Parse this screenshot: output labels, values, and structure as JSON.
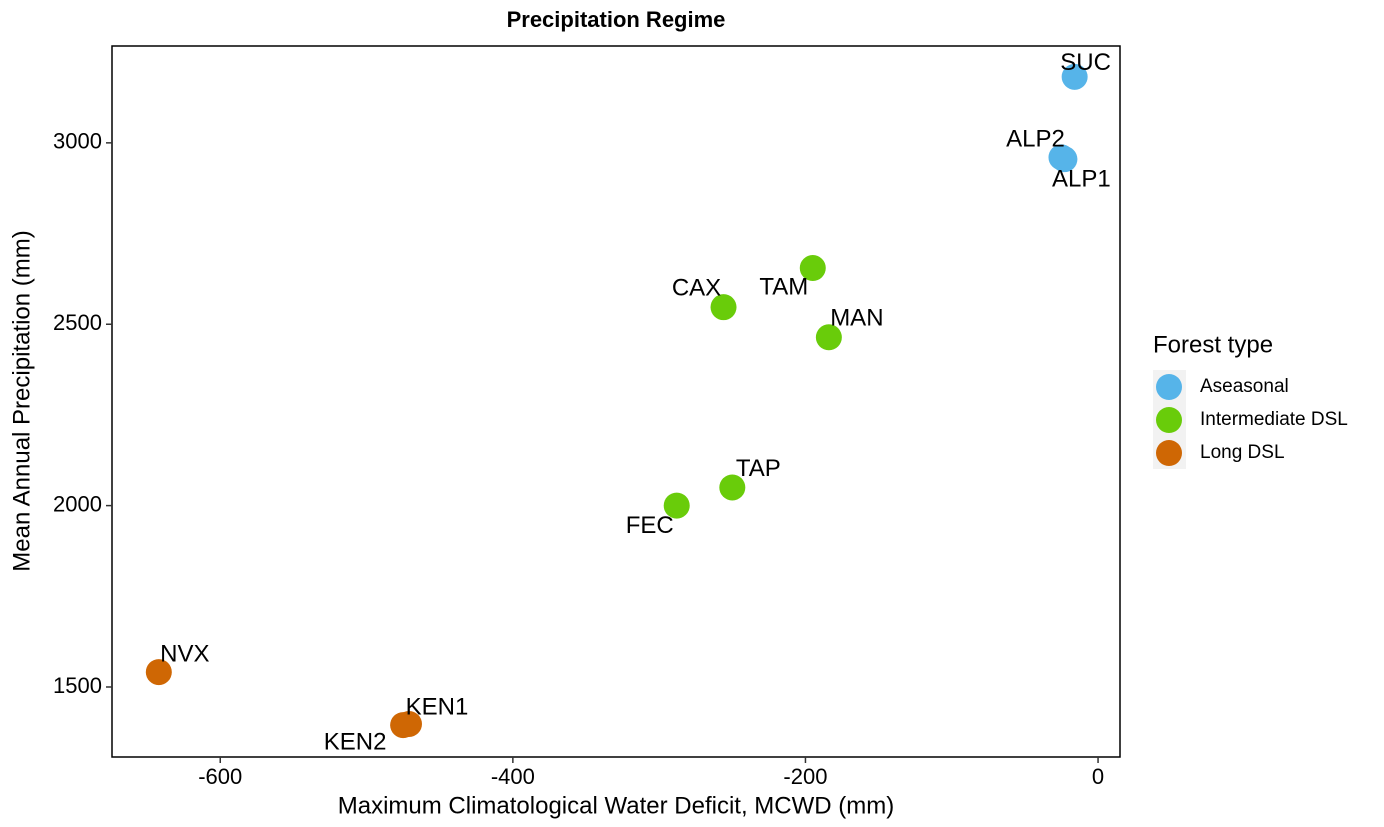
{
  "chart_data": {
    "type": "scatter",
    "title": "Precipitation Regime",
    "x_label": "Maximum Climatological Water Deficit, MCWD (mm)",
    "y_label": "Mean Annual Precipitation (mm)",
    "legend_title": "Forest type",
    "legend_position": "right",
    "grid": false,
    "xlim": [
      -674,
      15
    ],
    "ylim": [
      1307,
      3267
    ],
    "xticks": [
      -600,
      -400,
      -200,
      0
    ],
    "yticks": [
      1500,
      2000,
      2500,
      3000
    ],
    "series": [
      {
        "name": "Aseasonal",
        "color": "#56b4e9",
        "labels": [
          "SUC",
          "ALP2",
          "ALP1"
        ],
        "x": [
          -16,
          -25,
          -23
        ],
        "y": [
          3182,
          2960,
          2955
        ]
      },
      {
        "name": "Intermediate DSL",
        "color": "#69cc0a",
        "labels": [
          "TAM",
          "CAX",
          "MAN",
          "TAP",
          "FEC"
        ],
        "x": [
          -195,
          -256,
          -184,
          -250,
          -288
        ],
        "y": [
          2655,
          2547,
          2464,
          2050,
          2000
        ]
      },
      {
        "name": "Long DSL",
        "color": "#cf6704",
        "labels": [
          "NVX",
          "KEN1",
          "KEN2"
        ],
        "x": [
          -642,
          -471,
          -475
        ],
        "y": [
          1541,
          1398,
          1395
        ]
      }
    ]
  }
}
